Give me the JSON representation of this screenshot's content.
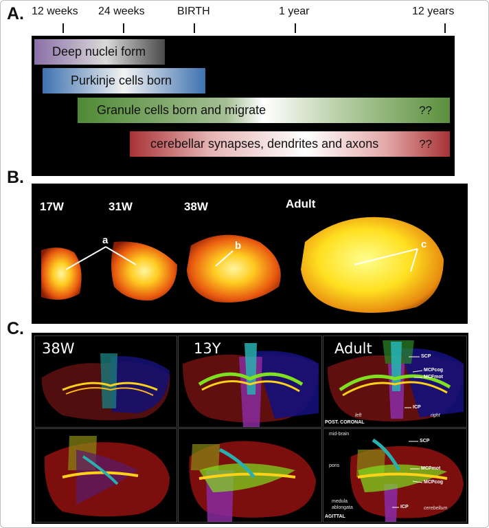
{
  "panel_a": {
    "label": "A.",
    "ticks": [
      {
        "label": "12 weeks"
      },
      {
        "label": "24 weeks"
      },
      {
        "label": "BIRTH"
      },
      {
        "label": "1 year"
      },
      {
        "label": "12 years"
      }
    ],
    "bars": [
      {
        "label": "Deep nuclei form",
        "suffix": ""
      },
      {
        "label": "Purkinje cells born",
        "suffix": ""
      },
      {
        "label": "Granule cells born and migrate",
        "suffix": "??"
      },
      {
        "label": "cerebellar synapses, dendrites and axons",
        "suffix": "??"
      }
    ]
  },
  "panel_b": {
    "label": "B.",
    "ages": [
      "17W",
      "31W",
      "38W",
      "Adult"
    ],
    "annotations": [
      "a",
      "b",
      "c"
    ]
  },
  "panel_c": {
    "label": "C.",
    "top_titles": [
      "38W",
      "13Y",
      "Adult"
    ],
    "coronal": {
      "tracts": [
        "SCP",
        "MCPcog",
        "MCFmot",
        "ICP"
      ],
      "left": "left",
      "right": "right",
      "view": "POST. CORONAL"
    },
    "sagittal": {
      "tracts": [
        "SCP",
        "MCPmot",
        "MCPcog",
        "ICP"
      ],
      "regions": [
        "mid-brain",
        "pons",
        "medula",
        "ablongata",
        "cerebellum"
      ],
      "view": "AGITTAL"
    }
  },
  "colors": {
    "deep_nuclei": "#8a6fa8",
    "purkinje": "#3e72b0",
    "granule": "#5a8f3c",
    "synapses": "#a83235",
    "fiber": "#ffd21a"
  }
}
